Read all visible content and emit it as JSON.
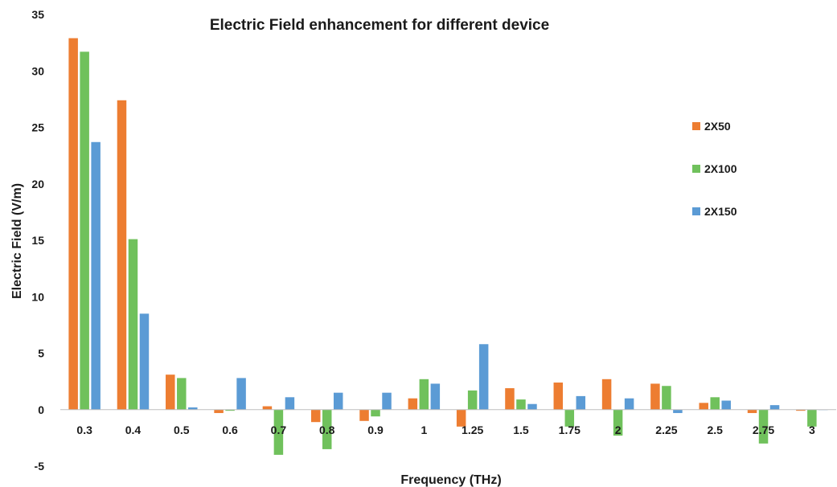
{
  "chart_data": {
    "type": "bar",
    "title": "Electric Field enhancement for different device",
    "xlabel": "Frequency (THz)",
    "ylabel": "Electric Field (V/m)",
    "ylim": [
      -5,
      35
    ],
    "yticks": [
      -5,
      0,
      5,
      10,
      15,
      20,
      25,
      30,
      35
    ],
    "grid": false,
    "legend_position": "right",
    "categories": [
      "0.3",
      "0.4",
      "0.5",
      "0.6",
      "0.7",
      "0.8",
      "0.9",
      "1",
      "1.25",
      "1.5",
      "1.75",
      "2",
      "2.25",
      "2.5",
      "2.75",
      "3"
    ],
    "series": [
      {
        "name": "2X50",
        "color": "#ed7d31",
        "values": [
          32.9,
          27.4,
          3.1,
          -0.3,
          0.3,
          -1.1,
          -1.0,
          1.0,
          -1.5,
          1.9,
          2.4,
          2.7,
          2.3,
          0.6,
          -0.3,
          -0.1
        ]
      },
      {
        "name": "2X100",
        "color": "#70c15c",
        "values": [
          31.7,
          15.1,
          2.8,
          -0.1,
          -4.0,
          -3.5,
          -0.6,
          2.7,
          1.7,
          0.9,
          -1.5,
          -2.3,
          2.1,
          1.1,
          -3.0,
          -1.5
        ]
      },
      {
        "name": "2X150",
        "color": "#5b9bd5",
        "values": [
          23.7,
          8.5,
          0.2,
          2.8,
          1.1,
          1.5,
          1.5,
          2.3,
          5.8,
          0.5,
          1.2,
          1.0,
          -0.3,
          0.8,
          0.4,
          0.0
        ]
      }
    ]
  }
}
